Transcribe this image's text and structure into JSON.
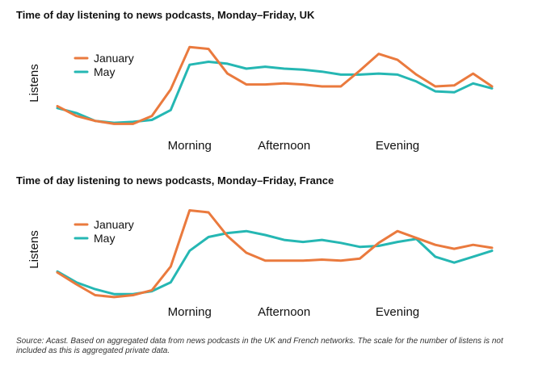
{
  "colors": {
    "january": "#ea7a3e",
    "may": "#25b7b3"
  },
  "chart_data": [
    {
      "type": "line",
      "title": "Time of day listening to news podcasts, Monday–Friday, UK",
      "ylabel": "Listens",
      "xlabel": "",
      "x_tick_labels": [
        "Morning",
        "Afternoon",
        "Evening"
      ],
      "x_ticks_at": [
        7,
        12,
        18
      ],
      "x": [
        0,
        1,
        2,
        3,
        4,
        5,
        6,
        7,
        8,
        9,
        10,
        11,
        12,
        13,
        14,
        15,
        16,
        17,
        18,
        19,
        20,
        21,
        22,
        23
      ],
      "ylim": [
        0,
        100
      ],
      "legend": "top-left",
      "series": [
        {
          "name": "January",
          "values": [
            30,
            20,
            15,
            12,
            12,
            20,
            47,
            90,
            88,
            63,
            52,
            52,
            53,
            52,
            50,
            50,
            66,
            83,
            77,
            62,
            50,
            51,
            63,
            50
          ]
        },
        {
          "name": "May",
          "values": [
            28,
            23,
            15,
            13,
            14,
            16,
            26,
            72,
            75,
            73,
            68,
            70,
            68,
            67,
            65,
            62,
            62,
            63,
            62,
            55,
            45,
            44,
            53,
            48
          ]
        }
      ]
    },
    {
      "type": "line",
      "title": "Time of day listening to news podcasts, Monday–Friday, France",
      "ylabel": "Listens",
      "xlabel": "",
      "x_tick_labels": [
        "Morning",
        "Afternoon",
        "Evening"
      ],
      "x_ticks_at": [
        7,
        12,
        18
      ],
      "x": [
        0,
        1,
        2,
        3,
        4,
        5,
        6,
        7,
        8,
        9,
        10,
        11,
        12,
        13,
        14,
        15,
        16,
        17,
        18,
        19,
        20,
        21,
        22,
        23
      ],
      "ylim": [
        0,
        100
      ],
      "legend": "top-left",
      "series": [
        {
          "name": "January",
          "values": [
            30,
            18,
            7,
            5,
            7,
            12,
            36,
            93,
            91,
            67,
            50,
            42,
            42,
            42,
            43,
            42,
            44,
            60,
            72,
            65,
            58,
            54,
            58,
            55
          ]
        },
        {
          "name": "May",
          "values": [
            31,
            20,
            13,
            8,
            8,
            11,
            20,
            52,
            66,
            70,
            72,
            68,
            63,
            61,
            63,
            60,
            56,
            57,
            61,
            64,
            46,
            40,
            46,
            52
          ]
        }
      ]
    }
  ],
  "source_text": "Source: Acast. Based on aggregated data from news podcasts in the UK and French networks. The scale for the number of listens  is not included as this is aggregated private data."
}
